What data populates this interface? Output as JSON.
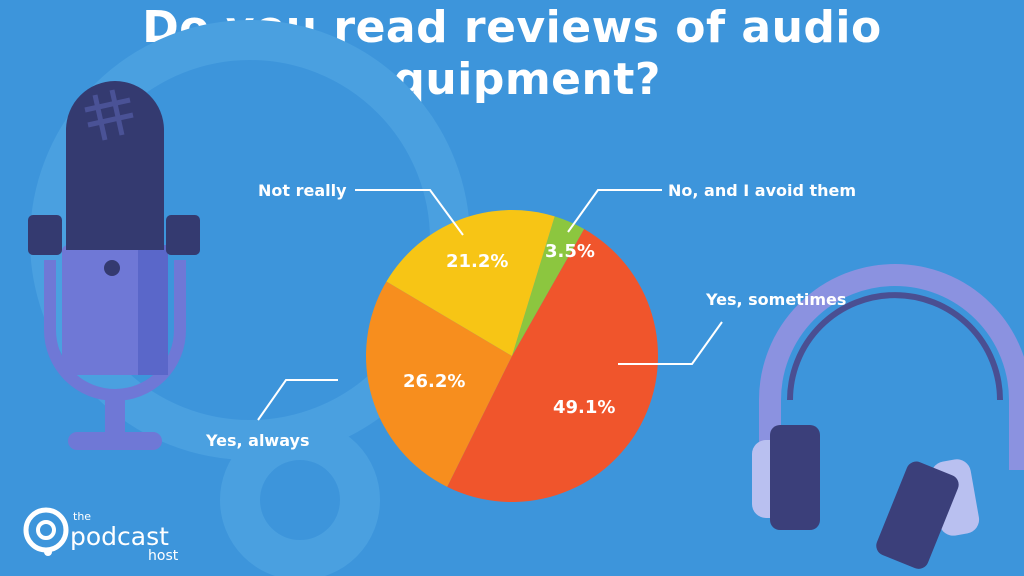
{
  "chart_data": {
    "type": "pie",
    "title": "Do you read reviews of audio equipment?",
    "start_angle_deg": 17,
    "direction": "clockwise",
    "slices": [
      {
        "label": "No, and I avoid them",
        "value": 3.5,
        "display": "3.5%",
        "color": "#8cc63f"
      },
      {
        "label": "Yes, sometimes",
        "value": 49.1,
        "display": "49.1%",
        "color": "#f0552c"
      },
      {
        "label": "Yes, always",
        "value": 26.2,
        "display": "26.2%",
        "color": "#f78e1e"
      },
      {
        "label": "Not really",
        "value": 21.2,
        "display": "21.2%",
        "color": "#f7c515"
      }
    ]
  },
  "logo": {
    "text_the": "the",
    "text_main": "podcast",
    "text_sub": "host"
  },
  "colors": {
    "background": "#3d95db"
  }
}
